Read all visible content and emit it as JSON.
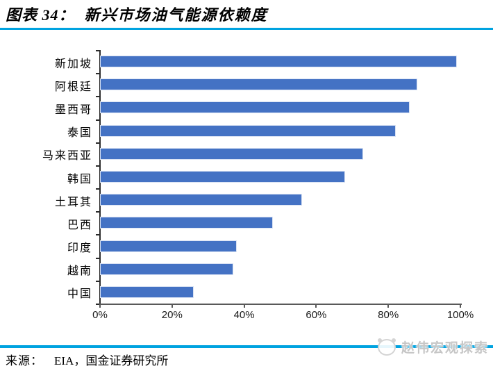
{
  "header": {
    "title_prefix": "图表 34：",
    "title_text": "新兴市场油气能源依赖度"
  },
  "chart_data": {
    "type": "bar",
    "orientation": "horizontal",
    "title": "新兴市场油气能源依赖度",
    "categories": [
      "新加坡",
      "阿根廷",
      "墨西哥",
      "泰国",
      "马来西亚",
      "韩国",
      "土耳其",
      "巴西",
      "印度",
      "越南",
      "中国"
    ],
    "values": [
      99,
      88,
      86,
      82,
      73,
      68,
      56,
      48,
      38,
      37,
      26
    ],
    "unit": "%",
    "xlim": [
      0,
      100
    ],
    "x_ticks": [
      0,
      20,
      40,
      60,
      80,
      100
    ],
    "x_tick_labels": [
      "0%",
      "20%",
      "40%",
      "60%",
      "80%",
      "100%"
    ],
    "grid": false,
    "legend": false,
    "bar_color": "#4472C4",
    "bar_border_color": "#d9e2f3"
  },
  "footer": {
    "source_label": "来源：",
    "source_text": "EIA，国金证券研究所",
    "watermark_text": "赵伟宏观探索"
  },
  "colors": {
    "accent_rule": "#00A3E0",
    "bar": "#4472C4",
    "axis": "#595959",
    "watermark_text": "#c6c6c6"
  }
}
